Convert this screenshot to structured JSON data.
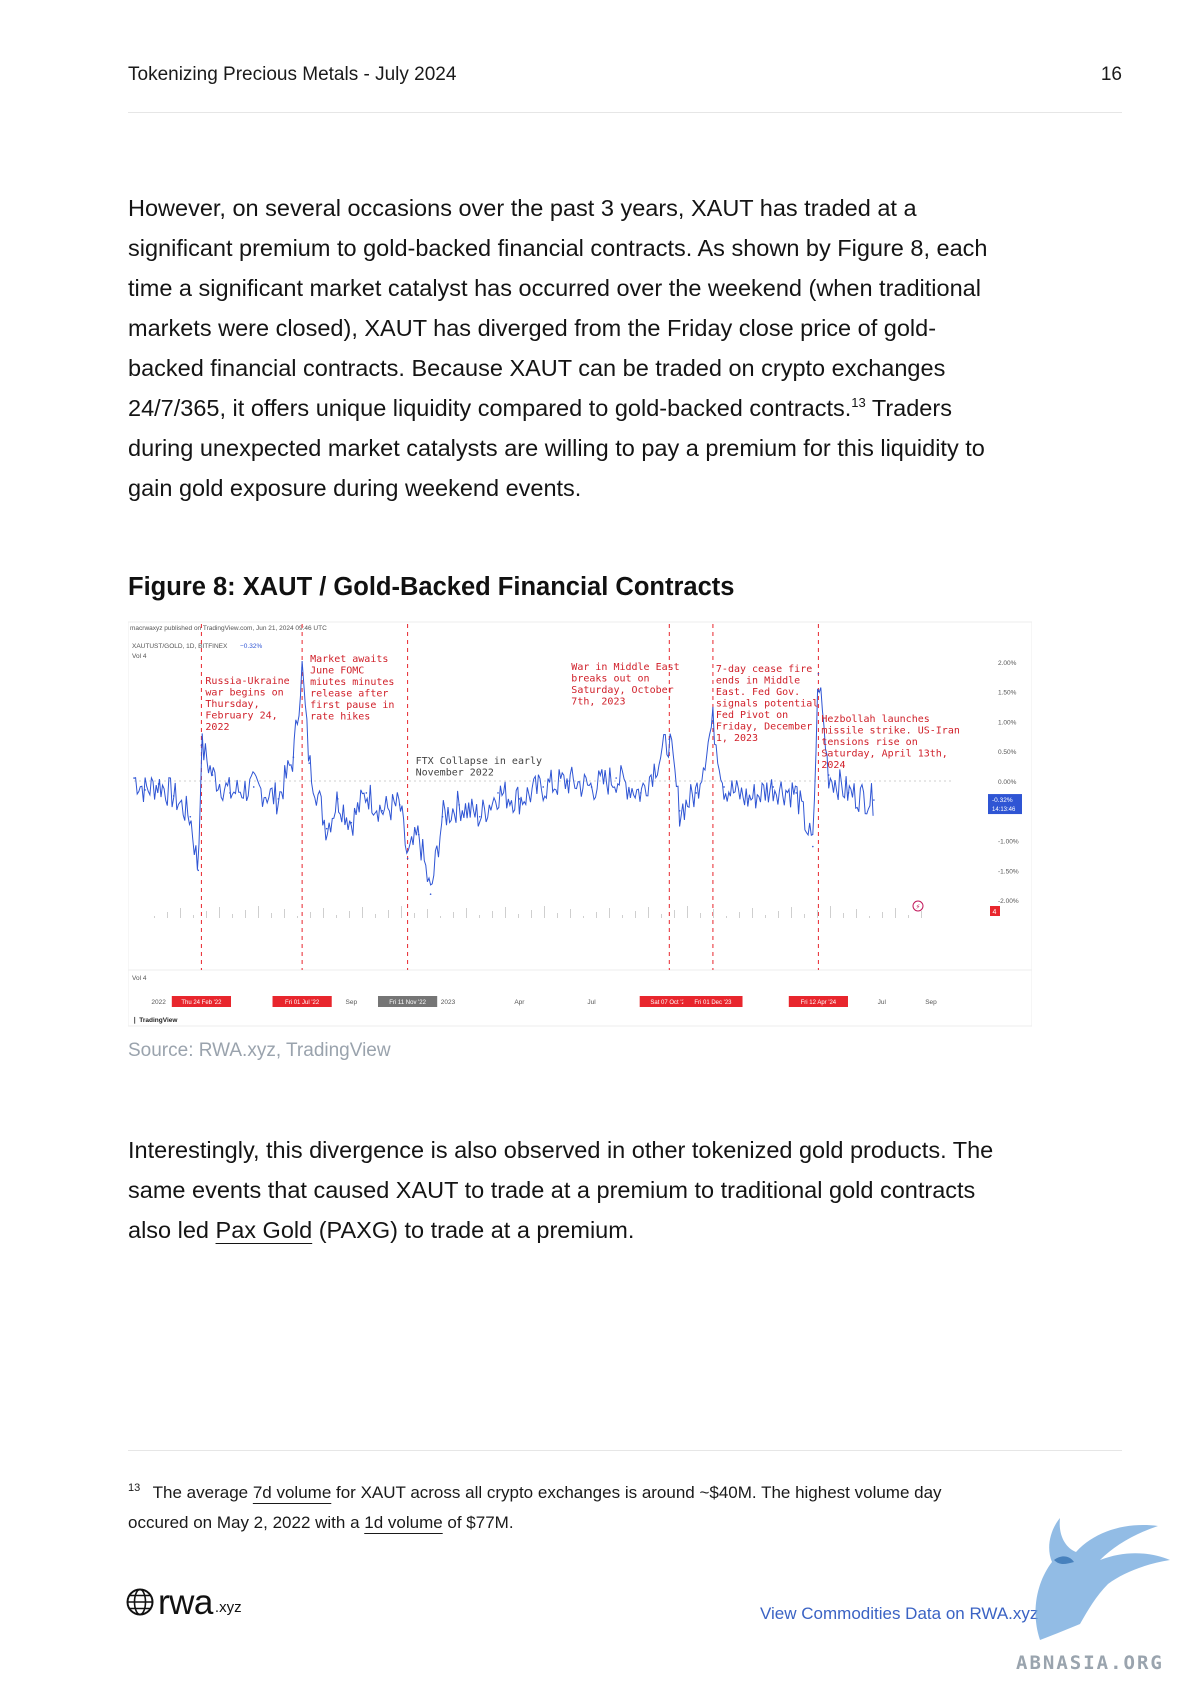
{
  "header": {
    "title": "Tokenizing Precious Metals - July 2024",
    "page_number": "16"
  },
  "body": {
    "para1_part1": "However, on several occasions over the past 3 years, XAUT has traded at a significant premium to gold-backed financial contracts. As shown by Figure 8, each time a significant market catalyst has occurred over the weekend (when traditional markets were closed), XAUT has diverged from the Friday close price of gold-backed financial contracts. Because XAUT can be traded on crypto exchanges 24/7/365, it offers unique liquidity compared to gold-backed contracts.",
    "para1_footnote_ref": "13",
    "para1_part2": " Traders during unexpected market catalysts are willing to pay a premium for this liquidity to gain gold exposure during weekend events.",
    "para2_part1": "Interestingly, this divergence is also observed in other tokenized gold products. The same events that caused XAUT to trade at a premium to traditional gold contracts also led ",
    "para2_link": "Pax Gold",
    "para2_part2": " (PAXG) to trade at a premium."
  },
  "figure": {
    "title": "Figure 8: XAUT / Gold-Backed Financial Contracts",
    "source": "Source: RWA.xyz, TradingView"
  },
  "chart_data": {
    "type": "line",
    "title": "",
    "published_line": "macrwaxyz published on TradingView.com, Jun 21, 2024 09:46 UTC",
    "symbol_line": "XAUTUST/GOLD, 1D, BITFINEX",
    "symbol_change": "−0.32%",
    "volume_label": "Vol  4",
    "ylabel": "",
    "y_unit": "%",
    "ylim": [
      -2.3,
      2.3
    ],
    "y_ticks": [
      "2.00%",
      "1.50%",
      "1.00%",
      "0.50%",
      "0.00%",
      "-1.00%",
      "-1.50%",
      "-2.00%"
    ],
    "last_value_label": "-0.32%",
    "last_time_label": "14:13:46",
    "indicator_badge": "4",
    "x_axis_labels": [
      {
        "label": "2022",
        "date": "2022-01-01"
      },
      {
        "label": "Sep",
        "date": "2022-09-01"
      },
      {
        "label": "2023",
        "date": "2023-01-01"
      },
      {
        "label": "Apr",
        "date": "2023-04-01"
      },
      {
        "label": "Jul",
        "date": "2023-07-01"
      },
      {
        "label": "Jul",
        "date": "2024-07-01"
      },
      {
        "label": "Sep",
        "date": "2024-09-01"
      }
    ],
    "event_markers": [
      {
        "label": "Thu 24 Feb '22",
        "date": "2022-02-24",
        "color": "#e8262d"
      },
      {
        "label": "Fri 01 Jul '22",
        "date": "2022-07-01",
        "color": "#e8262d"
      },
      {
        "label": "Fri 11 Nov '22",
        "date": "2022-11-11",
        "color": "#757575"
      },
      {
        "label": "Sat 07 Oct '23",
        "date": "2023-10-07",
        "color": "#e8262d"
      },
      {
        "label": "Fri 01 Dec '23",
        "date": "2023-12-01",
        "color": "#e8262d"
      },
      {
        "label": "Fri 12 Apr '24",
        "date": "2024-04-12",
        "color": "#e8262d"
      }
    ],
    "annotations": [
      {
        "date": "2022-02-24",
        "text": [
          "Russia-Ukraine",
          "war begins on",
          "Thursday,",
          "February 24,",
          "2022"
        ],
        "color": "#d0202a"
      },
      {
        "date": "2022-07-01",
        "text": [
          "Market awaits",
          "June FOMC",
          "miutes minutes",
          "release after",
          "first pause in",
          "rate hikes"
        ],
        "color": "#d0202a"
      },
      {
        "date": "2022-11-11",
        "text": [
          "FTX Collapse in early",
          "November 2022"
        ],
        "color": "#444444"
      },
      {
        "date": "2023-10-07",
        "text": [
          "War in Middle East",
          "breaks out on",
          "Saturday, October",
          "7th, 2023"
        ],
        "color": "#d0202a"
      },
      {
        "date": "2023-12-01",
        "text": [
          "7-day cease fire",
          "ends in Middle",
          "East. Fed Gov.",
          "signals potential",
          "Fed Pivot on",
          "Friday, December",
          "1, 2023"
        ],
        "color": "#d0202a"
      },
      {
        "date": "2024-04-12",
        "text": [
          "Hezbollah launches",
          "missile strike. US-Iran",
          "tensions rise on",
          "Saturday, April 13th,",
          "2024"
        ],
        "color": "#d0202a"
      }
    ],
    "series": [
      {
        "color": "#2f55d4",
        "points": [
          [
            "2021-12-01",
            0.05
          ],
          [
            "2021-12-15",
            -0.15
          ],
          [
            "2022-01-01",
            -0.05
          ],
          [
            "2022-01-20",
            -0.25
          ],
          [
            "2022-02-10",
            -0.6
          ],
          [
            "2022-02-20",
            -1.5
          ],
          [
            "2022-02-24",
            0.6
          ],
          [
            "2022-03-10",
            0.1
          ],
          [
            "2022-04-01",
            -0.2
          ],
          [
            "2022-05-01",
            -0.1
          ],
          [
            "2022-06-01",
            -0.3
          ],
          [
            "2022-06-20",
            0.4
          ],
          [
            "2022-07-01",
            1.9
          ],
          [
            "2022-07-10",
            0.3
          ],
          [
            "2022-08-01",
            -0.8
          ],
          [
            "2022-08-15",
            -0.3
          ],
          [
            "2022-09-01",
            -0.7
          ],
          [
            "2022-09-20",
            -0.2
          ],
          [
            "2022-10-10",
            -0.5
          ],
          [
            "2022-11-01",
            -0.4
          ],
          [
            "2022-11-11",
            -1.3
          ],
          [
            "2022-11-25",
            -0.9
          ],
          [
            "2022-12-10",
            -1.9
          ],
          [
            "2022-12-25",
            -0.6
          ],
          [
            "2023-01-15",
            -0.4
          ],
          [
            "2023-02-10",
            -0.6
          ],
          [
            "2023-03-05",
            -0.2
          ],
          [
            "2023-04-01",
            -0.3
          ],
          [
            "2023-05-01",
            -0.1
          ],
          [
            "2023-06-01",
            0.0
          ],
          [
            "2023-07-01",
            -0.1
          ],
          [
            "2023-08-01",
            0.05
          ],
          [
            "2023-09-01",
            -0.2
          ],
          [
            "2023-10-07",
            0.7
          ],
          [
            "2023-10-20",
            -0.5
          ],
          [
            "2023-11-10",
            -0.2
          ],
          [
            "2023-12-01",
            1.0
          ],
          [
            "2023-12-15",
            -0.1
          ],
          [
            "2024-01-15",
            -0.3
          ],
          [
            "2024-02-15",
            -0.1
          ],
          [
            "2024-03-15",
            -0.2
          ],
          [
            "2024-04-05",
            -1.1
          ],
          [
            "2024-04-12",
            1.8
          ],
          [
            "2024-04-25",
            0.1
          ],
          [
            "2024-05-20",
            -0.2
          ],
          [
            "2024-06-21",
            -0.32
          ]
        ]
      }
    ],
    "grid": false,
    "legend": "none",
    "branding": "TradingView"
  },
  "footnote": {
    "number": "13",
    "part1": " The average ",
    "link1": "7d volume",
    "part2": " for XAUT across all crypto exchanges is around ~$40M. The highest volume day occured on May 2, 2022 with a ",
    "link2": "1d volume",
    "part3": " of $77M."
  },
  "footer": {
    "logo_word": "rwa",
    "logo_domain": ".xyz",
    "link_text": "View Commodities Data on RWA.xyz",
    "watermark": "ABNASIA.ORG"
  },
  "colors": {
    "accent_link": "#3b63c4",
    "series": "#2f55d4",
    "event": "#e8262d",
    "muted": "#9aa3ad"
  }
}
